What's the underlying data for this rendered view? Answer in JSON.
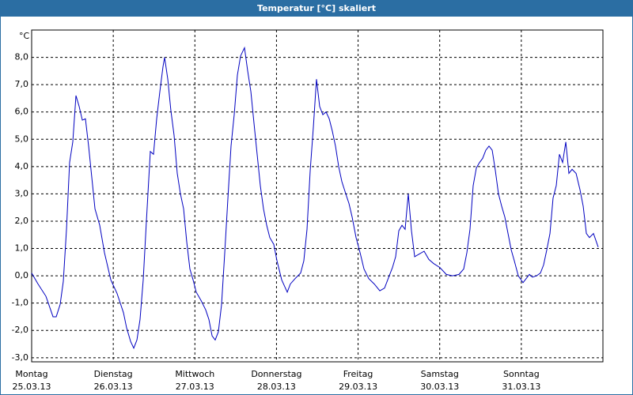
{
  "chart_data": {
    "type": "line",
    "title": "Temperatur [°C] skaliert",
    "y_unit": "°C",
    "xlim": [
      0,
      7
    ],
    "xticks": [
      {
        "value": 0,
        "label": "Montag"
      },
      {
        "value": 1,
        "label": "Dienstag"
      },
      {
        "value": 2,
        "label": "Mittwoch"
      },
      {
        "value": 3,
        "label": "Donnerstag"
      },
      {
        "value": 4,
        "label": "Freitag"
      },
      {
        "value": 5,
        "label": "Samstag"
      },
      {
        "value": 6,
        "label": "Sonntag"
      }
    ],
    "xtick_dates": [
      "25.03.13",
      "26.03.13",
      "27.03.13",
      "28.03.13",
      "29.03.13",
      "30.03.13",
      "31.03.13"
    ],
    "ylim": [
      -3.15,
      9.0
    ],
    "yticks": [
      {
        "value": -3,
        "label": "-3,0"
      },
      {
        "value": -2,
        "label": "-2,0"
      },
      {
        "value": -1,
        "label": "-1,0"
      },
      {
        "value": 0,
        "label": "0,0"
      },
      {
        "value": 1,
        "label": "1,0"
      },
      {
        "value": 2,
        "label": "2,0"
      },
      {
        "value": 3,
        "label": "3,0"
      },
      {
        "value": 4,
        "label": "4,0"
      },
      {
        "value": 5,
        "label": "5,0"
      },
      {
        "value": 6,
        "label": "6,0"
      },
      {
        "value": 7,
        "label": "7,0"
      },
      {
        "value": 8,
        "label": "8,0"
      }
    ],
    "grid": true,
    "series": [
      {
        "color": "#0000c0",
        "x": [
          0,
          0.078,
          0.175,
          0.262,
          0.301,
          0.349,
          0.388,
          0.427,
          0.465,
          0.504,
          0.543,
          0.582,
          0.621,
          0.659,
          0.698,
          0.737,
          0.776,
          0.834,
          0.892,
          0.97,
          1.047,
          1.125,
          1.163,
          1.212,
          1.251,
          1.29,
          1.328,
          1.367,
          1.406,
          1.454,
          1.493,
          1.532,
          1.571,
          1.609,
          1.629,
          1.668,
          1.706,
          1.745,
          1.784,
          1.823,
          1.862,
          1.9,
          1.939,
          1.978,
          2.017,
          2.075,
          2.133,
          2.172,
          2.211,
          2.249,
          2.288,
          2.327,
          2.366,
          2.405,
          2.443,
          2.482,
          2.521,
          2.56,
          2.608,
          2.647,
          2.686,
          2.724,
          2.763,
          2.802,
          2.841,
          2.88,
          2.918,
          2.967,
          3.006,
          3.064,
          3.132,
          3.17,
          3.229,
          3.296,
          3.335,
          3.374,
          3.413,
          3.452,
          3.49,
          3.529,
          3.568,
          3.607,
          3.646,
          3.684,
          3.723,
          3.762,
          3.801,
          3.849,
          3.888,
          3.927,
          3.975,
          4.024,
          4.072,
          4.13,
          4.198,
          4.266,
          4.324,
          4.382,
          4.421,
          4.46,
          4.499,
          4.538,
          4.576,
          4.615,
          4.654,
          4.693,
          4.751,
          4.809,
          4.867,
          4.925,
          5.003,
          5.081,
          5.158,
          5.236,
          5.294,
          5.333,
          5.371,
          5.41,
          5.449,
          5.488,
          5.526,
          5.565,
          5.604,
          5.643,
          5.682,
          5.72,
          5.759,
          5.798,
          5.837,
          5.876,
          5.914,
          5.963,
          6.021,
          6.06,
          6.099,
          6.137,
          6.186,
          6.234,
          6.273,
          6.312,
          6.351,
          6.389,
          6.428,
          6.467,
          6.506,
          6.545,
          6.583,
          6.622,
          6.671,
          6.719,
          6.758,
          6.797,
          6.835,
          6.884,
          6.942
        ],
        "values": [
          0.1,
          -0.3,
          -0.75,
          -1.5,
          -1.5,
          -1.05,
          -0.2,
          1.7,
          4.15,
          4.9,
          6.6,
          6.2,
          5.7,
          5.75,
          4.75,
          3.6,
          2.45,
          1.85,
          0.85,
          -0.15,
          -0.65,
          -1.35,
          -1.9,
          -2.4,
          -2.65,
          -2.35,
          -1.6,
          -0.15,
          2.0,
          4.55,
          4.45,
          5.75,
          6.75,
          7.65,
          8.0,
          7.2,
          6.05,
          5.15,
          3.75,
          3.0,
          2.45,
          1.25,
          0.25,
          -0.15,
          -0.6,
          -0.9,
          -1.25,
          -1.6,
          -2.2,
          -2.35,
          -2.05,
          -1.05,
          0.85,
          2.85,
          4.75,
          5.9,
          7.35,
          8.05,
          8.35,
          7.5,
          6.75,
          5.6,
          4.45,
          3.3,
          2.45,
          1.85,
          1.4,
          1.15,
          0.55,
          -0.15,
          -0.6,
          -0.3,
          -0.1,
          0.1,
          0.55,
          1.7,
          3.85,
          5.45,
          7.2,
          6.2,
          5.9,
          6.0,
          5.75,
          5.3,
          4.75,
          4.0,
          3.45,
          3.0,
          2.65,
          2.15,
          1.4,
          0.85,
          0.25,
          -0.1,
          -0.3,
          -0.55,
          -0.45,
          0,
          0.3,
          0.7,
          1.65,
          1.85,
          1.7,
          3.0,
          1.65,
          0.7,
          0.8,
          0.9,
          0.6,
          0.45,
          0.3,
          0.05,
          0,
          0.05,
          0.25,
          0.85,
          1.7,
          3.3,
          3.95,
          4.15,
          4.3,
          4.6,
          4.75,
          4.6,
          3.85,
          3.0,
          2.55,
          2.15,
          1.55,
          0.95,
          0.55,
          0,
          -0.25,
          -0.1,
          0.05,
          -0.05,
          0,
          0.1,
          0.4,
          0.95,
          1.55,
          2.85,
          3.3,
          4.45,
          4.15,
          4.9,
          3.75,
          3.9,
          3.75,
          3.15,
          2.55,
          1.55,
          1.4,
          1.55,
          1.05
        ]
      }
    ]
  }
}
